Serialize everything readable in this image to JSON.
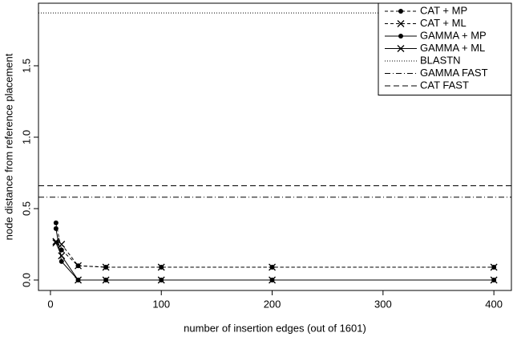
{
  "chart_data": {
    "type": "line",
    "xlabel": "number of insertion edges (out of 1601)",
    "ylabel": "node distance from reference placement",
    "x": [
      5,
      10,
      25,
      50,
      100,
      200,
      400
    ],
    "series": [
      {
        "name": "CAT + MP",
        "color": "#000000",
        "dash": "4,3",
        "marker": "dot",
        "values": [
          0.4,
          0.21,
          0.1,
          0.09,
          0.09,
          0.09,
          0.09
        ]
      },
      {
        "name": "CAT + ML",
        "color": "#000000",
        "dash": "4,3",
        "marker": "cross",
        "values": [
          0.27,
          0.25,
          0.1,
          0.09,
          0.09,
          0.09,
          0.09
        ]
      },
      {
        "name": "GAMMA + MP",
        "color": "#000000",
        "dash": "none",
        "marker": "dot",
        "values": [
          0.36,
          0.13,
          0.0,
          0.0,
          0.0,
          0.0,
          0.0
        ]
      },
      {
        "name": "GAMMA + ML",
        "color": "#000000",
        "dash": "none",
        "marker": "cross",
        "values": [
          0.26,
          0.17,
          0.0,
          0.0,
          0.0,
          0.0,
          0.0
        ]
      }
    ],
    "hlines": [
      {
        "name": "BLASTN",
        "color": "#000000",
        "dash": "1,2",
        "value": 1.87
      },
      {
        "name": "GAMMA FAST",
        "color": "#000000",
        "dash": "7,3,1,3",
        "value": 0.58
      },
      {
        "name": "CAT FAST",
        "color": "#000000",
        "dash": "7,4",
        "value": 0.66
      }
    ],
    "xlim": [
      -10.8,
      415.8
    ],
    "xticks": [
      0,
      100,
      200,
      300,
      400
    ],
    "ylim": [
      -0.073,
      1.938
    ],
    "yticks": [
      {
        "value": 0,
        "label": "0.0"
      },
      {
        "value": 0.5,
        "label": "0.5"
      },
      {
        "value": 1,
        "label": "1.0"
      },
      {
        "value": 1.5,
        "label": "1.5"
      }
    ],
    "legend": "top-right",
    "grid": false
  }
}
